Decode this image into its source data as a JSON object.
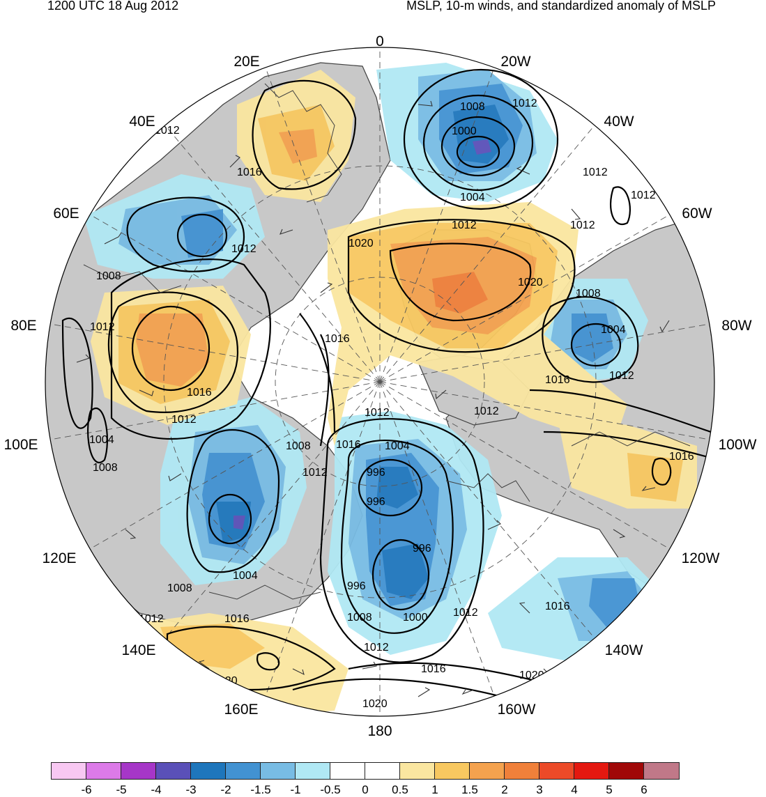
{
  "header": {
    "left": "1200 UTC 18 Aug 2012",
    "right": "MSLP, 10-m winds, and standardized anomaly of MSLP"
  },
  "longitude_labels": {
    "n0": "0",
    "n20w": "20W",
    "n40w": "40W",
    "n60w": "60W",
    "n80w": "80W",
    "n100w": "100W",
    "n120w": "120W",
    "n140w": "140W",
    "n160w": "160W",
    "n180": "180",
    "n160e": "160E",
    "n140e": "140E",
    "n120e": "120E",
    "n100e": "100E",
    "n80e": "80E",
    "n60e": "60E",
    "n40e": "40E",
    "n20e": "20E"
  },
  "isobars": {
    "c1008a": "1008",
    "c1012a": "1012",
    "c1000a": "1000",
    "c1004a": "1004",
    "c1012b": "1012",
    "c1012c": "1012",
    "c1012d": "1012",
    "c1016a": "1016",
    "c1012e": "1012",
    "c1020a": "1020",
    "c1020b": "1020",
    "c1008b": "1008",
    "c1004b": "1004",
    "c1016b": "1016",
    "c1012f": "1012",
    "c1008c": "1008",
    "c1012g": "1012",
    "c1016c": "1016",
    "c1012h": "1012",
    "c1004c": "1004",
    "c1008d": "1008",
    "c1012i": "1012",
    "c1016d": "1016",
    "c1004d": "1004",
    "c1012j": "1012",
    "c1008e": "1008",
    "c1016e": "1016",
    "c1012k": "1012",
    "c996a": "996",
    "c996b": "996",
    "c996c": "996",
    "c996d": "996",
    "c1000b": "1000",
    "c1012l": "1012",
    "c1004e": "1004",
    "c1008f": "1008",
    "c1012m": "1012",
    "c1016f": "1016",
    "c1008g": "1008",
    "c1012n": "1012",
    "c1016g": "1016",
    "c1016h": "1016",
    "c1020c": "1020",
    "c1020d": "1020",
    "c1020e": "1020",
    "c1016i": "1016"
  },
  "colorbar": {
    "colors": [
      "#f8c8f2",
      "#dc7ae8",
      "#a636c8",
      "#5a50b8",
      "#1e76bc",
      "#4292d2",
      "#78bce4",
      "#b0e8f4",
      "#ffffff",
      "#ffffff",
      "#fae6a0",
      "#f8c860",
      "#f4a24e",
      "#f0803a",
      "#ec4a28",
      "#e41810",
      "#a00808",
      "#c07888"
    ],
    "ticks": [
      "-6",
      "-5",
      "-4",
      "-3",
      "-2",
      "-1.5",
      "-1",
      "-0.5",
      "0",
      "0.5",
      "1",
      "1.5",
      "2",
      "3",
      "4",
      "5",
      "6"
    ]
  },
  "map_colors": {
    "land": "#c8c8c8",
    "coast": "#404040",
    "contour": "#000000"
  }
}
